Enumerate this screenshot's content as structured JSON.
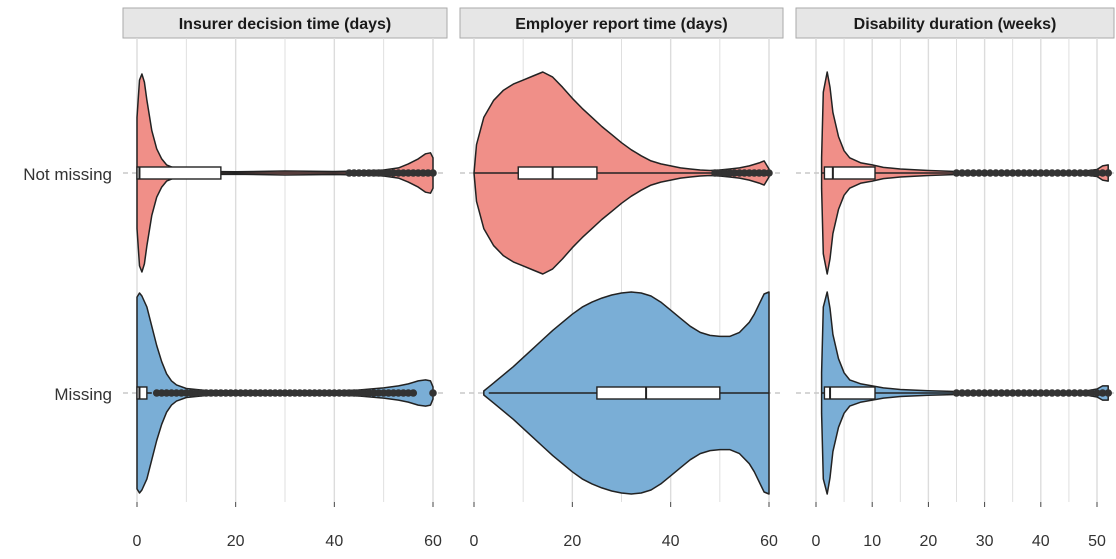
{
  "colors": {
    "not_missing": "#f08f88",
    "missing": "#7aaed6",
    "strip_fill": "#e6e6e6",
    "strip_border": "#aaaaaa",
    "grid": "#dcdcdc",
    "outline": "#222222",
    "point": "#333333"
  },
  "chart_data": {
    "type": "violin",
    "categories": [
      "Not missing",
      "Missing"
    ],
    "grid": true,
    "legend": "none",
    "panels": [
      {
        "title": "Insurer decision time (days)",
        "xlim": [
          -1,
          61
        ],
        "ticks": [
          0,
          20,
          40,
          60
        ],
        "groups": [
          {
            "category": "Not missing",
            "density": [
              [
                0,
                0.55
              ],
              [
                0.5,
                0.92
              ],
              [
                1,
                0.98
              ],
              [
                1.5,
                0.9
              ],
              [
                2,
                0.72
              ],
              [
                3,
                0.42
              ],
              [
                4,
                0.24
              ],
              [
                5,
                0.14
              ],
              [
                6,
                0.08
              ],
              [
                8,
                0.04
              ],
              [
                10,
                0.025
              ],
              [
                14,
                0.015
              ],
              [
                20,
                0.012
              ],
              [
                30,
                0.02
              ],
              [
                40,
                0.015
              ],
              [
                45,
                0.02
              ],
              [
                50,
                0.03
              ],
              [
                53,
                0.05
              ],
              [
                55,
                0.09
              ],
              [
                57,
                0.14
              ],
              [
                58.5,
                0.19
              ],
              [
                59.5,
                0.2
              ],
              [
                60,
                0.15
              ]
            ],
            "box": {
              "q1": 0,
              "median": 0.5,
              "q3": 17
            },
            "whisker": [
              0,
              43
            ],
            "outliers": [
              43,
              44,
              45,
              46,
              47,
              48,
              49,
              50,
              51,
              52,
              53,
              54,
              55,
              56,
              57,
              58,
              59,
              60
            ]
          },
          {
            "category": "Missing",
            "density": [
              [
                0,
                0.95
              ],
              [
                0.5,
                0.99
              ],
              [
                1,
                0.96
              ],
              [
                2,
                0.85
              ],
              [
                3,
                0.66
              ],
              [
                4,
                0.47
              ],
              [
                5,
                0.31
              ],
              [
                6,
                0.19
              ],
              [
                7,
                0.12
              ],
              [
                8,
                0.08
              ],
              [
                10,
                0.045
              ],
              [
                14,
                0.025
              ],
              [
                20,
                0.02
              ],
              [
                30,
                0.018
              ],
              [
                40,
                0.02
              ],
              [
                45,
                0.03
              ],
              [
                50,
                0.05
              ],
              [
                53,
                0.07
              ],
              [
                55,
                0.09
              ],
              [
                57,
                0.12
              ],
              [
                58.5,
                0.13
              ],
              [
                59.5,
                0.12
              ],
              [
                60,
                0.06
              ]
            ],
            "box": {
              "q1": 0,
              "median": 0.5,
              "q3": 2
            },
            "whisker": [
              0,
              3
            ],
            "outliers": [
              4,
              5,
              6,
              7,
              8,
              9,
              10,
              11,
              12,
              13,
              14,
              15,
              16,
              17,
              18,
              19,
              20,
              21,
              22,
              23,
              24,
              25,
              26,
              27,
              28,
              29,
              30,
              31,
              32,
              33,
              34,
              35,
              36,
              37,
              38,
              39,
              40,
              41,
              42,
              43,
              44,
              45,
              46,
              47,
              48,
              49,
              50,
              51,
              52,
              53,
              54,
              55,
              56,
              60
            ]
          }
        ]
      },
      {
        "title": "Employer report time (days)",
        "xlim": [
          -1,
          61
        ],
        "ticks": [
          0,
          20,
          40,
          60
        ],
        "groups": [
          {
            "category": "Not missing",
            "density": [
              [
                0,
                0.0
              ],
              [
                0.5,
                0.28
              ],
              [
                2,
                0.55
              ],
              [
                4,
                0.72
              ],
              [
                6,
                0.82
              ],
              [
                8,
                0.88
              ],
              [
                10,
                0.92
              ],
              [
                12,
                0.96
              ],
              [
                14,
                1.0
              ],
              [
                16,
                0.95
              ],
              [
                18,
                0.85
              ],
              [
                20,
                0.74
              ],
              [
                22,
                0.64
              ],
              [
                24,
                0.55
              ],
              [
                26,
                0.46
              ],
              [
                28,
                0.38
              ],
              [
                30,
                0.3
              ],
              [
                32,
                0.23
              ],
              [
                34,
                0.17
              ],
              [
                36,
                0.12
              ],
              [
                38,
                0.09
              ],
              [
                40,
                0.07
              ],
              [
                42,
                0.05
              ],
              [
                44,
                0.04
              ],
              [
                46,
                0.03
              ],
              [
                48,
                0.025
              ],
              [
                50,
                0.03
              ],
              [
                52,
                0.04
              ],
              [
                54,
                0.05
              ],
              [
                56,
                0.07
              ],
              [
                58,
                0.1
              ],
              [
                59,
                0.12
              ],
              [
                60,
                0.04
              ]
            ],
            "box": {
              "q1": 9,
              "median": 16,
              "q3": 25
            },
            "whisker": [
              0,
              49
            ],
            "outliers": [
              49,
              50,
              51,
              52,
              53,
              54,
              55,
              56,
              57,
              58,
              59,
              60
            ]
          },
          {
            "category": "Missing",
            "density": [
              [
                2,
                0.02
              ],
              [
                3,
                0.06
              ],
              [
                4,
                0.1
              ],
              [
                6,
                0.18
              ],
              [
                8,
                0.26
              ],
              [
                10,
                0.35
              ],
              [
                12,
                0.44
              ],
              [
                14,
                0.53
              ],
              [
                16,
                0.62
              ],
              [
                18,
                0.7
              ],
              [
                20,
                0.78
              ],
              [
                22,
                0.85
              ],
              [
                24,
                0.9
              ],
              [
                26,
                0.94
              ],
              [
                28,
                0.97
              ],
              [
                30,
                0.99
              ],
              [
                32,
                1.0
              ],
              [
                34,
                0.99
              ],
              [
                36,
                0.96
              ],
              [
                38,
                0.9
              ],
              [
                40,
                0.82
              ],
              [
                42,
                0.74
              ],
              [
                44,
                0.66
              ],
              [
                46,
                0.6
              ],
              [
                48,
                0.57
              ],
              [
                50,
                0.56
              ],
              [
                52,
                0.56
              ],
              [
                54,
                0.6
              ],
              [
                56,
                0.7
              ],
              [
                57,
                0.78
              ],
              [
                58,
                0.88
              ],
              [
                59,
                0.98
              ],
              [
                60,
                1.0
              ]
            ],
            "box": {
              "q1": 25,
              "median": 35,
              "q3": 50
            },
            "whisker": [
              3,
              60
            ],
            "outliers": []
          }
        ]
      },
      {
        "title": "Disability duration (weeks)",
        "xlim": [
          -0.5,
          52.5
        ],
        "ticks": [
          0,
          10,
          20,
          30,
          40,
          50
        ],
        "groups": [
          {
            "category": "Not missing",
            "density": [
              [
                1,
                0.15
              ],
              [
                1.3,
                0.8
              ],
              [
                2,
                1.0
              ],
              [
                2.5,
                0.85
              ],
              [
                3,
                0.6
              ],
              [
                4,
                0.36
              ],
              [
                5,
                0.22
              ],
              [
                6,
                0.15
              ],
              [
                8,
                0.1
              ],
              [
                10,
                0.08
              ],
              [
                12,
                0.055
              ],
              [
                15,
                0.04
              ],
              [
                20,
                0.025
              ],
              [
                25,
                0.015
              ],
              [
                30,
                0.012
              ],
              [
                40,
                0.012
              ],
              [
                45,
                0.015
              ],
              [
                48,
                0.02
              ],
              [
                50,
                0.035
              ],
              [
                51,
                0.07
              ],
              [
                52,
                0.08
              ]
            ],
            "box": {
              "q1": 1.5,
              "median": 3,
              "q3": 10.5
            },
            "whisker": [
              1,
              25
            ],
            "outliers": [
              25,
              26,
              27,
              28,
              29,
              30,
              31,
              32,
              33,
              34,
              35,
              36,
              37,
              38,
              39,
              40,
              41,
              42,
              43,
              44,
              45,
              46,
              47,
              48,
              49,
              50,
              51,
              52
            ]
          },
          {
            "category": "Missing",
            "density": [
              [
                1,
                0.2
              ],
              [
                1.3,
                0.85
              ],
              [
                2,
                1.0
              ],
              [
                2.5,
                0.84
              ],
              [
                3,
                0.58
              ],
              [
                4,
                0.34
              ],
              [
                5,
                0.2
              ],
              [
                6,
                0.13
              ],
              [
                8,
                0.09
              ],
              [
                10,
                0.07
              ],
              [
                12,
                0.05
              ],
              [
                15,
                0.035
              ],
              [
                20,
                0.022
              ],
              [
                25,
                0.015
              ],
              [
                30,
                0.012
              ],
              [
                40,
                0.012
              ],
              [
                45,
                0.015
              ],
              [
                48,
                0.02
              ],
              [
                50,
                0.04
              ],
              [
                51,
                0.07
              ],
              [
                52,
                0.07
              ]
            ],
            "box": {
              "q1": 1.5,
              "median": 2.5,
              "q3": 10.5
            },
            "whisker": [
              1,
              25
            ],
            "outliers": [
              25,
              26,
              27,
              28,
              29,
              30,
              31,
              32,
              33,
              34,
              35,
              36,
              37,
              38,
              39,
              40,
              41,
              42,
              43,
              44,
              45,
              46,
              47,
              48,
              49,
              50,
              51,
              52
            ]
          }
        ]
      }
    ]
  }
}
